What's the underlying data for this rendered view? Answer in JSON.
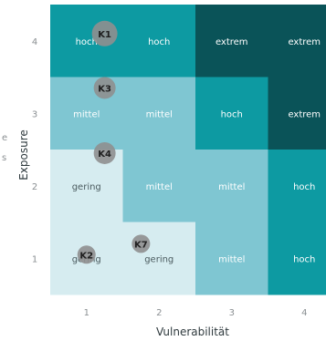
{
  "chart_data": {
    "type": "heatmap",
    "title": "",
    "xlabel": "Vulnerabilität",
    "ylabel": "Exposure",
    "side_fragment": "e\ns",
    "x_ticks": [
      "1",
      "2",
      "3",
      "4"
    ],
    "y_ticks": [
      "1",
      "2",
      "3",
      "4"
    ],
    "levels": {
      "gering": "#d6ecf0",
      "mittel": "#7fc6d2",
      "hoch": "#0d9aa2",
      "extrem": "#0a5358"
    },
    "grid": [
      {
        "y": "4",
        "cells": [
          "hoch",
          "hoch",
          "extrem",
          "extrem"
        ]
      },
      {
        "y": "3",
        "cells": [
          "mittel",
          "mittel",
          "hoch",
          "extrem"
        ]
      },
      {
        "y": "2",
        "cells": [
          "gering",
          "mittel",
          "mittel",
          "hoch"
        ]
      },
      {
        "y": "1",
        "cells": [
          "gering",
          "gering",
          "mittel",
          "hoch"
        ]
      }
    ],
    "markers": [
      {
        "label": "K1",
        "x": 1.25,
        "y": 4.1,
        "size": "large"
      },
      {
        "label": "K3",
        "x": 1.25,
        "y": 3.35,
        "size": "medium"
      },
      {
        "label": "K4",
        "x": 1.25,
        "y": 2.45,
        "size": "medium"
      },
      {
        "label": "K2",
        "x": 1.0,
        "y": 1.05,
        "size": "small"
      },
      {
        "label": "K7",
        "x": 1.75,
        "y": 1.2,
        "size": "small"
      }
    ]
  }
}
